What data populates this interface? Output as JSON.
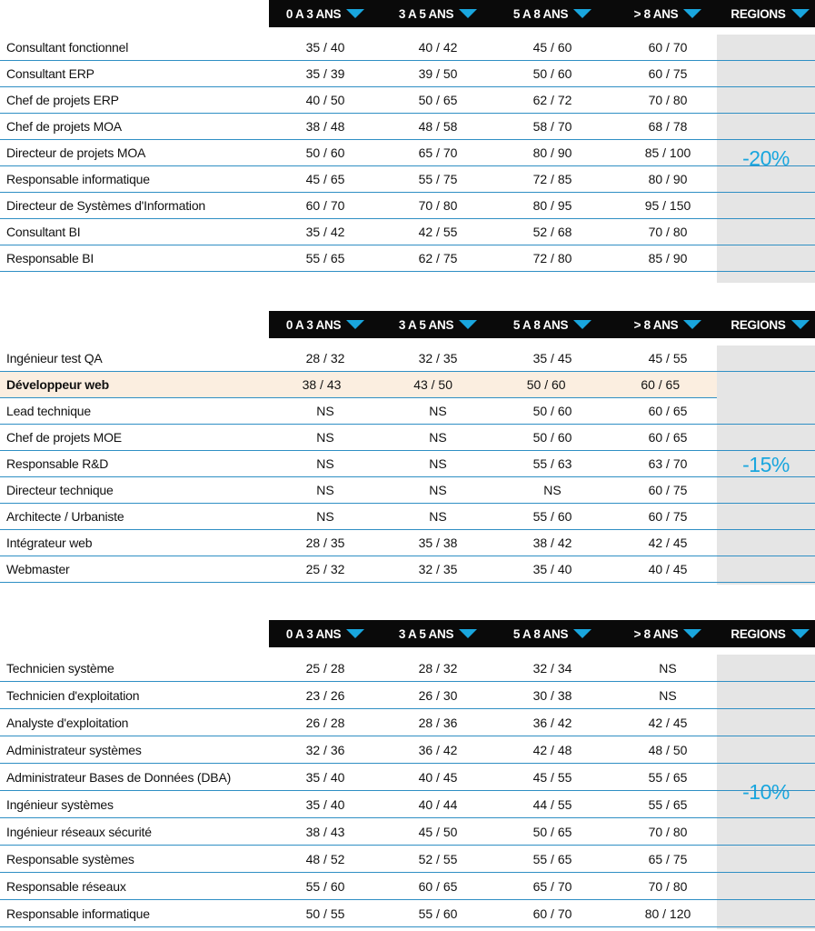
{
  "columns": [
    {
      "label": "0 A 3 ANS",
      "icon": "triangle-down-icon"
    },
    {
      "label": "3 A 5 ANS",
      "icon": "triangle-down-icon"
    },
    {
      "label": "5 A 8 ANS",
      "icon": "triangle-down-icon"
    },
    {
      "label": "> 8 ANS",
      "icon": "triangle-down-icon"
    },
    {
      "label": "REGIONS",
      "icon": "triangle-down-icon"
    }
  ],
  "colors": {
    "accent": "#19a6de",
    "header_bg": "#0a0a0a",
    "region_bg": "#e5e5e5",
    "highlight_bg": "#fbeee0",
    "rule": "#2f8fc4"
  },
  "tables": [
    {
      "region": "-20%",
      "rows": [
        {
          "name": "Consultant fonctionnel",
          "values": [
            "35 / 40",
            "40 / 42",
            "45 / 60",
            "60 / 70"
          ]
        },
        {
          "name": "Consultant ERP",
          "values": [
            "35 / 39",
            "39 / 50",
            "50 / 60",
            "60 / 75"
          ]
        },
        {
          "name": "Chef de projets ERP",
          "values": [
            "40 / 50",
            "50 / 65",
            "62 / 72",
            "70 / 80"
          ]
        },
        {
          "name": "Chef de projets MOA",
          "values": [
            "38 / 48",
            "48 / 58",
            "58 / 70",
            "68 / 78"
          ]
        },
        {
          "name": "Directeur de projets MOA",
          "values": [
            "50 / 60",
            "65 / 70",
            "80 / 90",
            "85 / 100"
          ]
        },
        {
          "name": "Responsable informatique",
          "values": [
            "45 / 65",
            "55 / 75",
            "72 / 85",
            "80 / 90"
          ]
        },
        {
          "name": "Directeur de Systèmes d'Information",
          "values": [
            "60 / 70",
            "70 / 80",
            "80 / 95",
            "95 / 150"
          ]
        },
        {
          "name": "Consultant BI",
          "values": [
            "35 / 42",
            "42 / 55",
            "52 / 68",
            "70 / 80"
          ]
        },
        {
          "name": "Responsable BI",
          "values": [
            "55 / 65",
            "62 / 75",
            "72 / 80",
            "85 / 90"
          ]
        }
      ]
    },
    {
      "region": "-15%",
      "rows": [
        {
          "name": "Ingénieur test QA",
          "values": [
            "28 / 32",
            "32 / 35",
            "35 / 45",
            "45 / 55"
          ]
        },
        {
          "name": "Développeur web",
          "values": [
            "38 / 43",
            "43 / 50",
            "50 / 60",
            "60 / 65"
          ],
          "highlight": true
        },
        {
          "name": "Lead technique",
          "values": [
            "NS",
            "NS",
            "50 / 60",
            "60 / 65"
          ]
        },
        {
          "name": "Chef de projets MOE",
          "values": [
            "NS",
            "NS",
            "50 / 60",
            "60 / 65"
          ]
        },
        {
          "name": "Responsable R&D",
          "values": [
            "NS",
            "NS",
            "55 / 63",
            "63 / 70"
          ]
        },
        {
          "name": "Directeur technique",
          "values": [
            "NS",
            "NS",
            "NS",
            "60 / 75"
          ]
        },
        {
          "name": "Architecte / Urbaniste",
          "values": [
            "NS",
            "NS",
            "55 / 60",
            "60 / 75"
          ]
        },
        {
          "name": "Intégrateur web",
          "values": [
            "28 / 35",
            "35 / 38",
            "38 / 42",
            "42 / 45"
          ]
        },
        {
          "name": "Webmaster",
          "values": [
            "25 / 32",
            "32 / 35",
            "35 / 40",
            "40 / 45"
          ]
        }
      ]
    },
    {
      "region": "-10%",
      "rows": [
        {
          "name": "Technicien système",
          "values": [
            "25 / 28",
            "28 / 32",
            "32 / 34",
            "NS"
          ]
        },
        {
          "name": "Technicien d'exploitation",
          "values": [
            "23 / 26",
            "26 / 30",
            "30 / 38",
            "NS"
          ]
        },
        {
          "name": "Analyste d'exploitation",
          "values": [
            "26 / 28",
            "28 / 36",
            "36 / 42",
            "42 / 45"
          ]
        },
        {
          "name": "Administrateur systèmes",
          "values": [
            "32 / 36",
            "36 / 42",
            "42 / 48",
            "48 / 50"
          ]
        },
        {
          "name": "Administrateur Bases de Données (DBA)",
          "values": [
            "35 / 40",
            "40 / 45",
            "45 / 55",
            "55 / 65"
          ]
        },
        {
          "name": "Ingénieur systèmes",
          "values": [
            "35 / 40",
            "40 / 44",
            "44 / 55",
            "55 / 65"
          ]
        },
        {
          "name": "Ingénieur réseaux sécurité",
          "values": [
            "38 / 43",
            "45 / 50",
            "50 / 65",
            "70 / 80"
          ]
        },
        {
          "name": "Responsable systèmes",
          "values": [
            "48 / 52",
            "52 / 55",
            "55 / 65",
            "65 / 75"
          ]
        },
        {
          "name": "Responsable réseaux",
          "values": [
            "55 / 60",
            "60 / 65",
            "65 / 70",
            "70 / 80"
          ]
        },
        {
          "name": "Responsable informatique",
          "values": [
            "50 / 55",
            "55 / 60",
            "60 / 70",
            "80 / 120"
          ]
        }
      ]
    }
  ]
}
